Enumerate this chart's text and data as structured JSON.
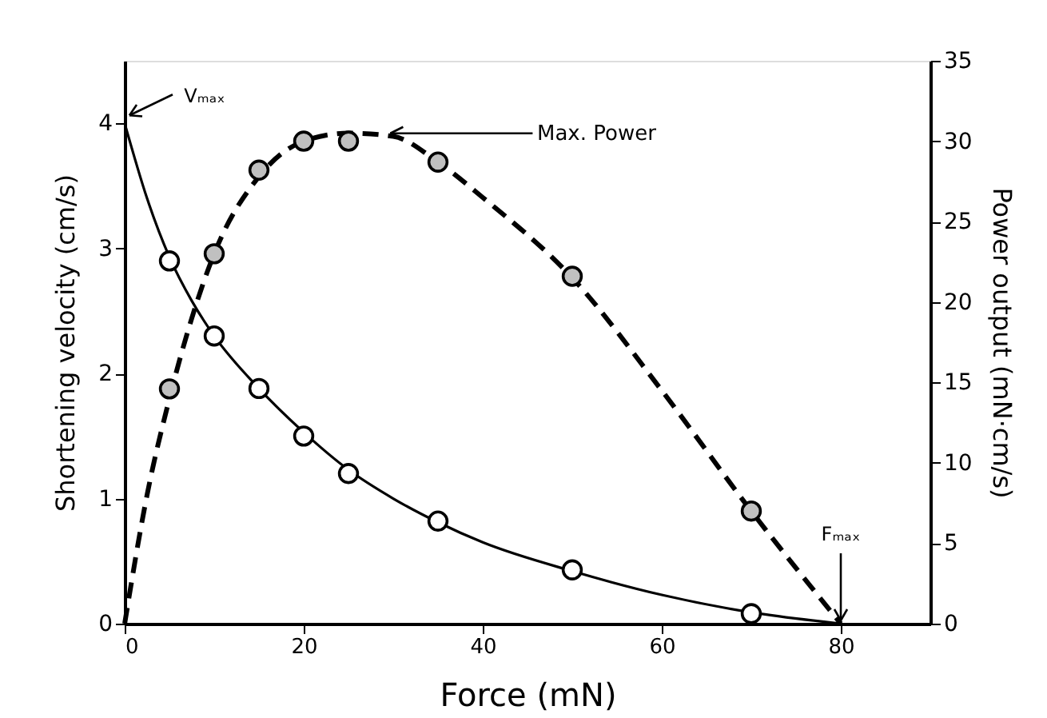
{
  "chart_data": {
    "type": "line",
    "xlabel": "Force (mN)",
    "ylabel": "Shortening velocity (cm/s)",
    "y2label": "Power output (mN·cm/s)",
    "xlim": [
      0,
      90
    ],
    "xticks": [
      0,
      20,
      40,
      60,
      80
    ],
    "ylim": [
      0,
      4.5
    ],
    "yticks": [
      0,
      1,
      2,
      3,
      4
    ],
    "y2lim": [
      0,
      35
    ],
    "y2ticks": [
      0,
      5,
      10,
      15,
      20,
      25,
      30,
      35
    ],
    "grid": false,
    "series": [
      {
        "color": "#000000",
        "line_style": "solid",
        "marker": "none",
        "x": [
          0,
          2.5,
          5,
          7.5,
          10,
          15,
          20,
          25,
          30,
          35,
          40,
          50,
          60,
          70,
          80
        ],
        "values": [
          4,
          3.4,
          2.93,
          2.58,
          2.3,
          1.88,
          1.53,
          1.23,
          1.0,
          0.81,
          0.65,
          0.42,
          0.23,
          0.09,
          0
        ]
      },
      {
        "type": "scatter",
        "color": "#ffffff",
        "marker": "circle",
        "x": [
          5,
          10,
          15,
          20,
          25,
          35,
          50,
          70
        ],
        "values": [
          2.9,
          2.3,
          1.88,
          1.5,
          1.2,
          0.82,
          0.43,
          0.08
        ]
      },
      {
        "axis": "y2",
        "color": "#000000",
        "line_style": "dashed",
        "marker": "none",
        "x": [
          0,
          2.5,
          5,
          7.5,
          10,
          15,
          20,
          25,
          30,
          35,
          40,
          50,
          60,
          70,
          80
        ],
        "values": [
          0,
          8,
          14,
          19,
          23,
          27.8,
          30,
          30.5,
          30.3,
          28.7,
          26.5,
          21.5,
          14.5,
          7,
          0
        ]
      },
      {
        "type": "scatter",
        "axis": "y2",
        "color": "#c0c0c0",
        "marker": "circle",
        "x": [
          5,
          10,
          15,
          20,
          25,
          35,
          50,
          70
        ],
        "values": [
          14.6,
          23,
          28.2,
          30,
          30,
          28.7,
          21.6,
          7
        ]
      }
    ],
    "annotations": [
      {
        "text": "Vₘₐₓ",
        "x": 0,
        "y": 4
      },
      {
        "text": "Max. Power",
        "x": 29.5,
        "y": 3.92
      },
      {
        "text": "Fₘₐₓ",
        "x": 80,
        "y": 0
      }
    ]
  }
}
